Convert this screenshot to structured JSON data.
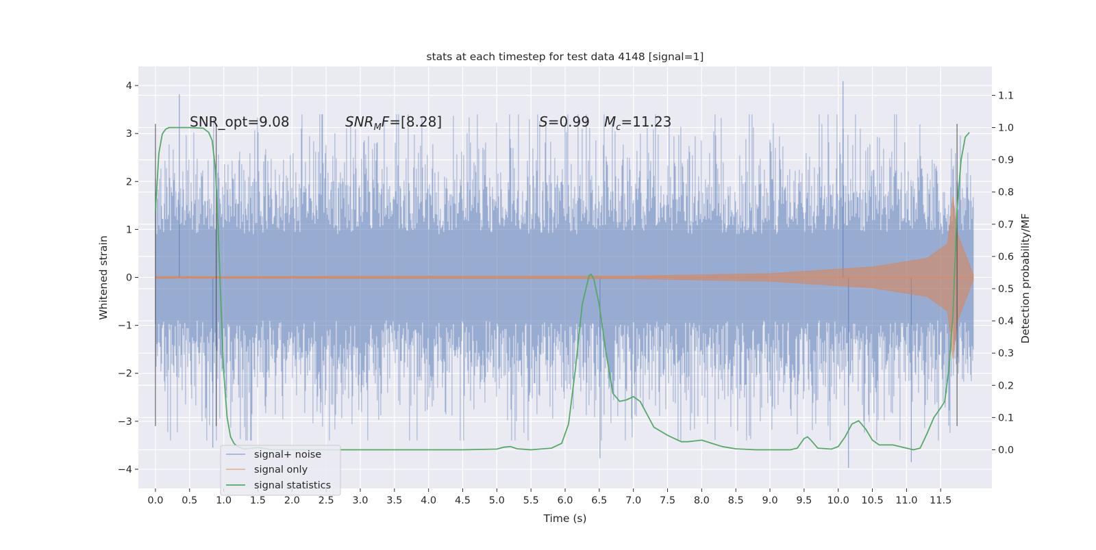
{
  "chart_data": {
    "type": "line",
    "title": "stats at each timestep for test data 4148 [signal=1]",
    "xlabel": "Time (s)",
    "ylabel": "Whitened strain",
    "y2label": "Detection probability/MF",
    "xlim": [
      -0.25,
      12.25
    ],
    "ylim": [
      -4.4,
      4.4
    ],
    "y2lim": [
      -0.12,
      1.19
    ],
    "x_ticks": [
      "0.0",
      "0.5",
      "1.0",
      "1.5",
      "2.0",
      "2.5",
      "3.0",
      "3.5",
      "4.0",
      "4.5",
      "5.0",
      "5.5",
      "6.0",
      "6.5",
      "7.0",
      "7.5",
      "8.0",
      "8.5",
      "9.0",
      "9.5",
      "10.0",
      "10.5",
      "11.0",
      "11.5"
    ],
    "y_ticks": [
      "−4",
      "−3",
      "−2",
      "−1",
      "0",
      "1",
      "2",
      "3",
      "4"
    ],
    "y2_ticks": [
      "0.0",
      "0.1",
      "0.2",
      "0.3",
      "0.4",
      "0.5",
      "0.6",
      "0.7",
      "0.8",
      "0.9",
      "1.0",
      "1.1"
    ],
    "grid": true,
    "legend_position": "lower-left",
    "annotations": {
      "snr_opt": "SNR_opt=9.08",
      "snr_mf_sym": "SNR",
      "snr_mf_sub": "M",
      "snr_mf_rest": "F=[8.28]",
      "s_sym": "S",
      "s_rest": "=0.99",
      "mc_sym": "M",
      "mc_sub": "c",
      "mc_rest": "=11.23"
    },
    "vertical_markers": [
      0.0,
      0.89,
      11.74
    ],
    "series": [
      {
        "name": "signal+ noise",
        "color": "#4c72b0",
        "kind": "noise-waveform",
        "x_range": [
          0.0,
          11.98
        ],
        "noise_sigma": 1.0,
        "notable_peaks": [
          [
            0.35,
            3.82
          ],
          [
            10.07,
            4.09
          ],
          [
            6.51,
            -3.77
          ],
          [
            10.15,
            -3.97
          ],
          [
            11.07,
            -3.85
          ],
          [
            0.84,
            -3.55
          ]
        ]
      },
      {
        "name": "signal only",
        "color": "#dd8452",
        "kind": "chirp",
        "x_range": [
          0.0,
          11.98
        ],
        "amplitude_at": [
          [
            0.0,
            0.02
          ],
          [
            7.0,
            0.03
          ],
          [
            9.0,
            0.08
          ],
          [
            10.5,
            0.22
          ],
          [
            11.3,
            0.4
          ],
          [
            11.6,
            0.7
          ],
          [
            11.68,
            1.7
          ],
          [
            11.75,
            0.9
          ],
          [
            11.98,
            0.05
          ]
        ]
      },
      {
        "name": "signal statistics",
        "color": "#55a868",
        "kind": "line",
        "axis": "right",
        "x": [
          0.0,
          0.05,
          0.1,
          0.15,
          0.2,
          0.3,
          0.5,
          0.7,
          0.78,
          0.83,
          0.88,
          0.92,
          0.96,
          1.0,
          1.05,
          1.1,
          1.15,
          1.2,
          1.3,
          1.5,
          1.7,
          1.9,
          2.5,
          3.5,
          4.5,
          5.0,
          5.1,
          5.2,
          5.3,
          5.5,
          5.8,
          5.95,
          6.05,
          6.15,
          6.25,
          6.35,
          6.38,
          6.42,
          6.5,
          6.6,
          6.7,
          6.8,
          6.9,
          7.0,
          7.1,
          7.2,
          7.3,
          7.5,
          7.7,
          7.8,
          8.0,
          8.15,
          8.3,
          8.5,
          8.8,
          9.0,
          9.3,
          9.4,
          9.5,
          9.55,
          9.6,
          9.7,
          9.9,
          10.0,
          10.1,
          10.2,
          10.3,
          10.4,
          10.5,
          10.6,
          10.8,
          10.9,
          11.1,
          11.2,
          11.3,
          11.4,
          11.5,
          11.56,
          11.62,
          11.68,
          11.74,
          11.8,
          11.86,
          11.92
        ],
        "y": [
          0.74,
          0.92,
          0.98,
          0.995,
          1.0,
          1.0,
          1.0,
          0.998,
          0.985,
          0.96,
          0.87,
          0.68,
          0.45,
          0.24,
          0.1,
          0.04,
          0.02,
          0.01,
          0.002,
          0.007,
          0.0,
          0.0,
          0.0,
          0.0,
          0.0,
          0.002,
          0.008,
          0.01,
          0.003,
          0.0,
          0.005,
          0.02,
          0.08,
          0.25,
          0.45,
          0.54,
          0.545,
          0.53,
          0.45,
          0.3,
          0.175,
          0.15,
          0.155,
          0.165,
          0.15,
          0.11,
          0.07,
          0.045,
          0.025,
          0.025,
          0.03,
          0.02,
          0.01,
          0.003,
          0.0,
          0.0,
          0.0,
          0.005,
          0.035,
          0.04,
          0.03,
          0.005,
          0.002,
          0.01,
          0.04,
          0.08,
          0.09,
          0.065,
          0.03,
          0.015,
          0.015,
          0.01,
          0.0,
          0.005,
          0.05,
          0.1,
          0.13,
          0.15,
          0.25,
          0.42,
          0.75,
          0.9,
          0.97,
          0.985
        ]
      }
    ]
  }
}
